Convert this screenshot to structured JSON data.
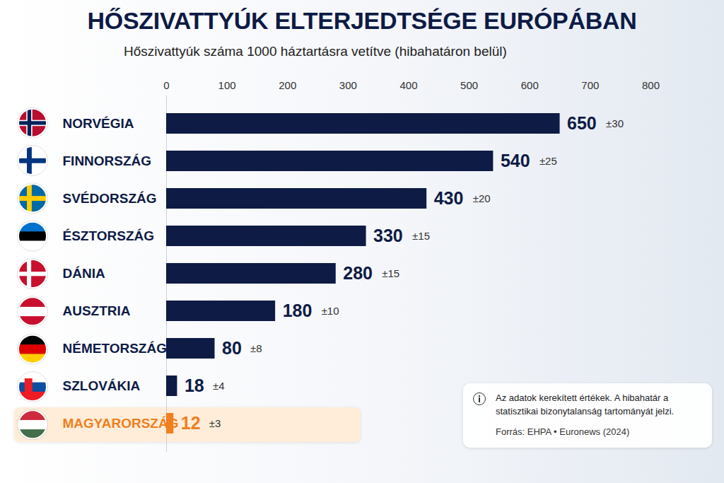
{
  "chart_data": {
    "type": "bar",
    "orientation": "horizontal",
    "title": "HŐSZIVATTYÚK ELTERJEDTSÉGE EURÓPÁBAN",
    "subtitle": "Hőszivattyúk száma 1000 háztartásra vetítve (hibahatáron belül)",
    "categories": [
      "NORVÉGIA",
      "FINNORSZÁG",
      "SVÉDORSZÁG",
      "ÉSZTORSZÁG",
      "DÁNIA",
      "AUSZTRIA",
      "NÉMETORSZÁG",
      "SZLOVÁKIA",
      "MAGYARORSZÁG"
    ],
    "values": [
      650,
      540,
      430,
      330,
      280,
      180,
      80,
      18,
      12
    ],
    "error_labels": [
      "±30",
      "±25",
      "±20",
      "±15",
      "±15",
      "±10",
      "±8",
      "±4",
      "±3"
    ],
    "colors": [
      "#0d1b45",
      "#0d1b45",
      "#0d1b45",
      "#0d1b45",
      "#0d1b45",
      "#0d1b45",
      "#0d1b45",
      "#0d1b45",
      "#f07f1e"
    ],
    "xlim": [
      0,
      800
    ],
    "xticks": [
      0,
      100,
      200,
      300,
      400,
      500,
      600,
      700,
      800
    ],
    "grid": false,
    "data_labels": true,
    "note": "Az adatok kerekített értékek. A hibahatár a statisztikai bizonytalanság tartományát jelzi.",
    "source": "Forrás: EHPA • Euronews (2024)"
  }
}
